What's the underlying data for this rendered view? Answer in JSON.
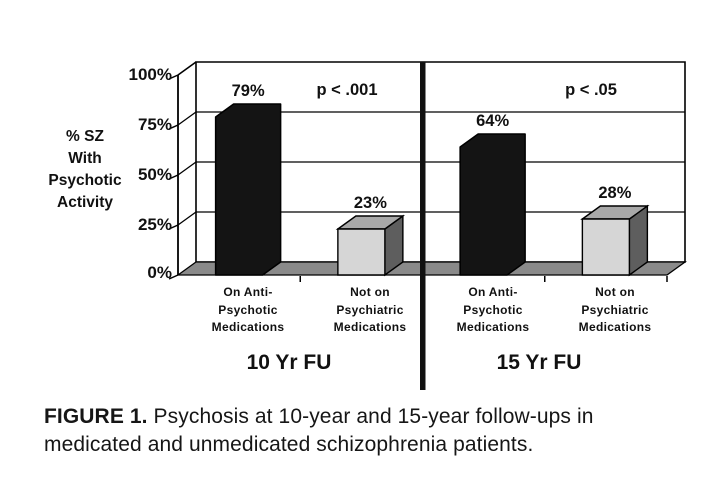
{
  "figure": {
    "caption_label": "FIGURE 1.",
    "caption_text": "Psychosis at 10-year and 15-year follow-ups in medicated and unmedicated schizophrenia patients."
  },
  "chart_data": {
    "type": "bar",
    "style": "3d-column",
    "title": "",
    "xlabel": "",
    "ylabel": "% SZ\nWith\nPsychotic\nActivity",
    "ylim": [
      0,
      100
    ],
    "y_ticks": [
      "100%",
      "75%",
      "50%",
      "25%",
      "0%"
    ],
    "y_tick_values": [
      100,
      75,
      50,
      25,
      0
    ],
    "grid": true,
    "legend": "none",
    "groups": [
      {
        "label": "10 Yr FU",
        "p_label": "p < .001",
        "bars": [
          {
            "category": "On Anti-\nPsychotic\nMedications",
            "value": 79,
            "value_label": "79%",
            "color_role": "dark"
          },
          {
            "category": "Not on\nPsychiatric\nMedications",
            "value": 23,
            "value_label": "23%",
            "color_role": "light"
          }
        ]
      },
      {
        "label": "15 Yr FU",
        "p_label": "p < .05",
        "bars": [
          {
            "category": "On Anti-\nPsychotic\nMedications",
            "value": 64,
            "value_label": "64%",
            "color_role": "dark"
          },
          {
            "category": "Not on\nPsychiatric\nMedications",
            "value": 28,
            "value_label": "28%",
            "color_role": "light"
          }
        ]
      }
    ],
    "colors": {
      "dark_bar": "#141414",
      "light_bar_front": "#d6d6d6",
      "light_bar_top": "#a8a8a8",
      "light_bar_side": "#5e5e5e",
      "floor": "#8a8a8a",
      "outline": "#000000",
      "divider": "#111111",
      "wall": "#ffffff"
    }
  }
}
